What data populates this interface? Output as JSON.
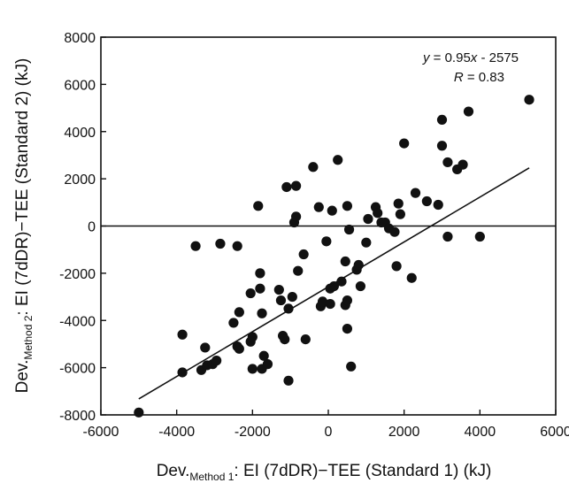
{
  "chart_data": {
    "type": "scatter",
    "xlabel": {
      "main": "Dev.",
      "sub": "Method 1",
      "rest": ": EI (7dDR)−TEE (Standard 1) (kJ)"
    },
    "ylabel": {
      "main": "Dev.",
      "sub": "Method 2",
      "rest": ": EI (7dDR)−TEE (Standard 2) (kJ)"
    },
    "xlim": [
      -6000,
      6000
    ],
    "ylim": [
      -8000,
      8000
    ],
    "xticks": [
      -6000,
      -4000,
      -2000,
      0,
      2000,
      4000,
      6000
    ],
    "yticks": [
      -8000,
      -6000,
      -4000,
      -2000,
      0,
      2000,
      4000,
      6000,
      8000
    ],
    "x_tick_labels": [
      "-6000",
      "-4000",
      "-2000",
      "0",
      "2000",
      "4000",
      "6000"
    ],
    "y_tick_labels": [
      "-8000",
      "-6000",
      "-4000",
      "-2000",
      "0",
      "2000",
      "4000",
      "6000",
      "8000"
    ],
    "reference_line_y": 0,
    "grid": false,
    "regression": {
      "equation_prefix": "y",
      "equation_middle": " = 0.95",
      "equation_x": "x",
      "equation_suffix": " - 2575",
      "r_label": "R",
      "r_value": " = 0.83",
      "slope": 0.95,
      "intercept": -2575,
      "x_range": [
        -5000,
        5300
      ]
    },
    "points": [
      [
        -5000,
        -7900
      ],
      [
        -3850,
        -4600
      ],
      [
        -3850,
        -6200
      ],
      [
        -3500,
        -850
      ],
      [
        -3350,
        -6100
      ],
      [
        -3250,
        -5150
      ],
      [
        -3200,
        -5900
      ],
      [
        -3050,
        -5850
      ],
      [
        -2950,
        -5700
      ],
      [
        -2850,
        -750
      ],
      [
        -2500,
        -4100
      ],
      [
        -2400,
        -850
      ],
      [
        -2400,
        -5100
      ],
      [
        -2350,
        -3650
      ],
      [
        -2350,
        -5200
      ],
      [
        -2050,
        -2850
      ],
      [
        -2050,
        -4900
      ],
      [
        -2000,
        -4700
      ],
      [
        -2000,
        -6050
      ],
      [
        -1850,
        850
      ],
      [
        -1800,
        -2000
      ],
      [
        -1800,
        -2650
      ],
      [
        -1750,
        -6050
      ],
      [
        -1750,
        -3700
      ],
      [
        -1700,
        -5500
      ],
      [
        -1600,
        -5850
      ],
      [
        -1300,
        -2700
      ],
      [
        -1250,
        -3150
      ],
      [
        -1200,
        -4650
      ],
      [
        -1150,
        -4800
      ],
      [
        -1100,
        1650
      ],
      [
        -1050,
        -6550
      ],
      [
        -1050,
        -3500
      ],
      [
        -950,
        -3000
      ],
      [
        -900,
        150
      ],
      [
        -850,
        1700
      ],
      [
        -850,
        400
      ],
      [
        -800,
        -1900
      ],
      [
        -650,
        -1200
      ],
      [
        -600,
        -4800
      ],
      [
        -400,
        2500
      ],
      [
        -250,
        800
      ],
      [
        -200,
        -3400
      ],
      [
        -150,
        -3200
      ],
      [
        -50,
        -650
      ],
      [
        50,
        -2650
      ],
      [
        50,
        -3300
      ],
      [
        100,
        650
      ],
      [
        150,
        -2550
      ],
      [
        250,
        2800
      ],
      [
        350,
        -2350
      ],
      [
        450,
        -3350
      ],
      [
        450,
        -1500
      ],
      [
        500,
        -3150
      ],
      [
        500,
        -4350
      ],
      [
        500,
        850
      ],
      [
        550,
        -150
      ],
      [
        600,
        -5950
      ],
      [
        750,
        -1850
      ],
      [
        800,
        -1650
      ],
      [
        850,
        -2550
      ],
      [
        1000,
        -700
      ],
      [
        1050,
        300
      ],
      [
        1250,
        800
      ],
      [
        1300,
        550
      ],
      [
        1400,
        150
      ],
      [
        1500,
        150
      ],
      [
        1600,
        -100
      ],
      [
        1750,
        -250
      ],
      [
        1800,
        -1700
      ],
      [
        1850,
        950
      ],
      [
        1900,
        500
      ],
      [
        2000,
        3500
      ],
      [
        2200,
        -2200
      ],
      [
        2300,
        1400
      ],
      [
        2600,
        1050
      ],
      [
        2900,
        900
      ],
      [
        3000,
        3400
      ],
      [
        3000,
        4500
      ],
      [
        3150,
        2700
      ],
      [
        3150,
        -450
      ],
      [
        3400,
        2400
      ],
      [
        3550,
        2600
      ],
      [
        3700,
        4850
      ],
      [
        4000,
        -450
      ],
      [
        5300,
        5350
      ]
    ]
  }
}
